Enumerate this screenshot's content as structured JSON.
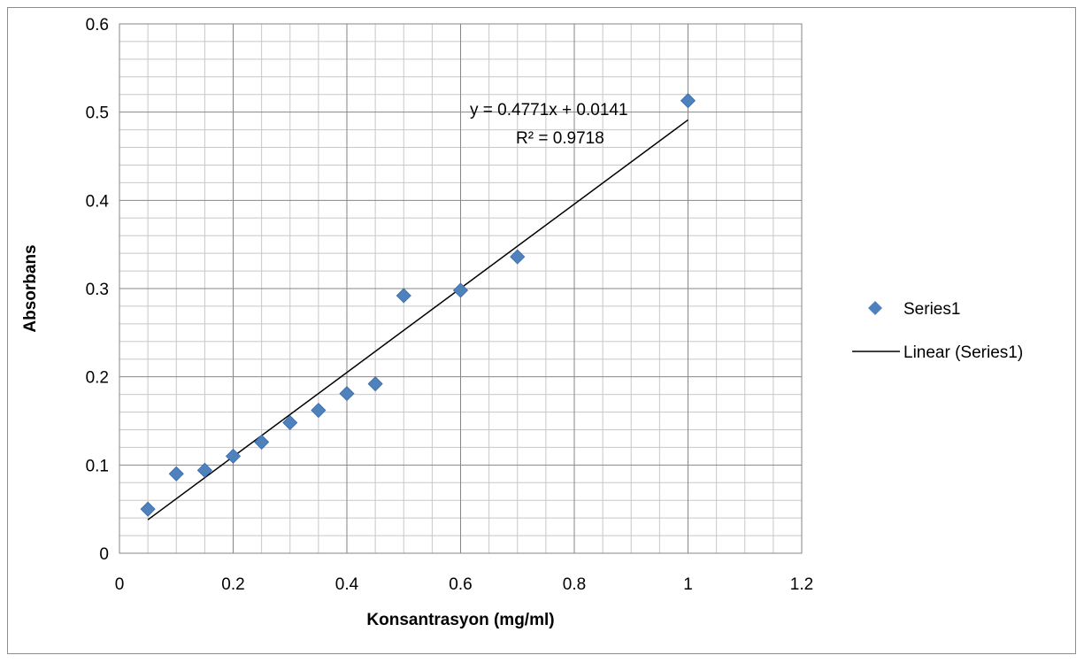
{
  "chart_data": {
    "type": "scatter",
    "title": "",
    "xlabel": "Konsantrasyon (mg/ml)",
    "ylabel": "Absorbans",
    "xlim": [
      0,
      1.2
    ],
    "ylim": [
      0,
      0.6
    ],
    "x_major_step": 0.2,
    "y_major_step": 0.1,
    "x_minor_per_major": 4,
    "y_minor_per_major": 5,
    "x_ticks": [
      "0",
      "0.2",
      "0.4",
      "0.6",
      "0.8",
      "1",
      "1.2"
    ],
    "y_ticks": [
      "0",
      "0.1",
      "0.2",
      "0.3",
      "0.4",
      "0.5",
      "0.6"
    ],
    "grid": "major-and-minor",
    "legend_position": "right",
    "series": [
      {
        "name": "Series1",
        "marker": "diamond",
        "color": "#4f81bd",
        "x": [
          0.05,
          0.1,
          0.15,
          0.2,
          0.25,
          0.3,
          0.35,
          0.4,
          0.45,
          0.5,
          0.6,
          0.7,
          1.0
        ],
        "y": [
          0.05,
          0.09,
          0.094,
          0.11,
          0.126,
          0.148,
          0.162,
          0.181,
          0.192,
          0.292,
          0.298,
          0.336,
          0.513
        ]
      }
    ],
    "trendline": {
      "name": "Linear (Series1)",
      "type": "linear",
      "slope": 0.4771,
      "intercept": 0.0141,
      "x_range": [
        0.05,
        1.0
      ],
      "color": "#000000",
      "equation_label": "y = 0.4771x + 0.0141",
      "r2_label": "R² = 0.9718"
    }
  }
}
